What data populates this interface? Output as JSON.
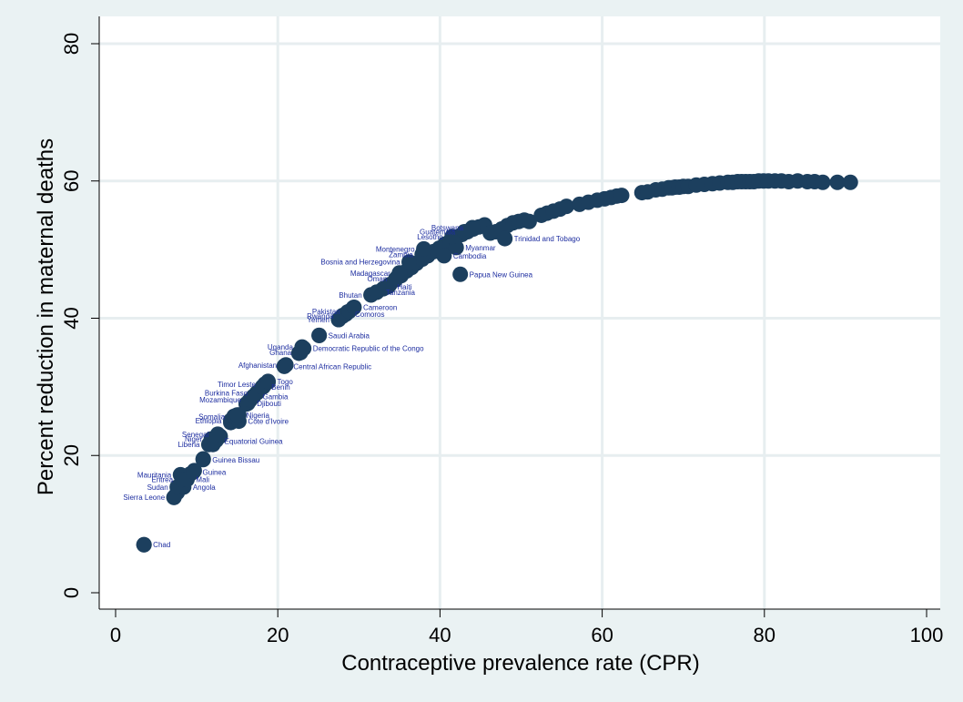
{
  "chart_data": {
    "type": "scatter",
    "title": "",
    "xlabel": "Contraceptive prevalence rate (CPR)",
    "ylabel": "Percent reduction in maternal deaths",
    "xlim": [
      0,
      100
    ],
    "ylim": [
      0,
      80
    ],
    "xticks": [
      0,
      20,
      40,
      60,
      80,
      100
    ],
    "yticks": [
      0,
      20,
      40,
      60,
      80
    ],
    "grid": true,
    "legend": "none",
    "colors": {
      "marker": "#1c3f5e",
      "label": "#1e2ea0",
      "background": "#eaf2f3",
      "plot_bg": "#ffffff",
      "grid": "#e7eef0"
    },
    "labeled_points": [
      {
        "label": "Chad",
        "x": 3.5,
        "y": 7
      },
      {
        "label": "Sierra Leone",
        "x": 7.2,
        "y": 13.9
      },
      {
        "label": "Sudan",
        "x": 7.6,
        "y": 15.4
      },
      {
        "label": "Angola",
        "x": 8.4,
        "y": 15.4
      },
      {
        "label": "Mauritania",
        "x": 8.0,
        "y": 17.2
      },
      {
        "label": "Eritrea",
        "x": 8.2,
        "y": 16.5
      },
      {
        "label": "Mali",
        "x": 8.8,
        "y": 16.5
      },
      {
        "label": "Guinea",
        "x": 9.6,
        "y": 17.6
      },
      {
        "label": "Guinea Bissau",
        "x": 10.8,
        "y": 19.4
      },
      {
        "label": "Liberia",
        "x": 11.5,
        "y": 21.6
      },
      {
        "label": "Niger",
        "x": 11.8,
        "y": 22.4
      },
      {
        "label": "Equatorial Guinea",
        "x": 12.3,
        "y": 22.1
      },
      {
        "label": "Senegal",
        "x": 12.6,
        "y": 23.1
      },
      {
        "label": "Ethiopia",
        "x": 14.2,
        "y": 25.1
      },
      {
        "label": "Somalia",
        "x": 14.6,
        "y": 25.7
      },
      {
        "label": "Cote d'Ivoire",
        "x": 15.2,
        "y": 25.0
      },
      {
        "label": "Nigeria",
        "x": 15.0,
        "y": 25.9
      },
      {
        "label": "Djibouti",
        "x": 16.3,
        "y": 27.6
      },
      {
        "label": "Mozambique",
        "x": 16.6,
        "y": 28.1
      },
      {
        "label": "Gambia",
        "x": 17.0,
        "y": 28.6
      },
      {
        "label": "Burkina Faso",
        "x": 17.4,
        "y": 29.1
      },
      {
        "label": "Benin",
        "x": 18.1,
        "y": 30.0
      },
      {
        "label": "Timor Leste",
        "x": 18.4,
        "y": 30.4
      },
      {
        "label": "Togo",
        "x": 18.8,
        "y": 30.8
      },
      {
        "label": "Central African Republic",
        "x": 20.8,
        "y": 33.0
      },
      {
        "label": "Afghanistan",
        "x": 21.0,
        "y": 33.2
      },
      {
        "label": "Ghana",
        "x": 22.8,
        "y": 35.0
      },
      {
        "label": "Democratic Republic of the Congo",
        "x": 23.2,
        "y": 35.6
      },
      {
        "label": "Uganda",
        "x": 23.0,
        "y": 35.8
      },
      {
        "label": "Saudi Arabia",
        "x": 25.1,
        "y": 37.5
      },
      {
        "label": "Yemen",
        "x": 27.5,
        "y": 39.8
      },
      {
        "label": "Rwanda",
        "x": 28.0,
        "y": 40.3
      },
      {
        "label": "Comoros",
        "x": 28.4,
        "y": 40.6
      },
      {
        "label": "Pakistan",
        "x": 28.8,
        "y": 41.0
      },
      {
        "label": "Cameroon",
        "x": 29.4,
        "y": 41.6
      },
      {
        "label": "Bhutan",
        "x": 31.5,
        "y": 43.4
      },
      {
        "label": "Tanzania",
        "x": 32.2,
        "y": 43.8
      },
      {
        "label": "Haiti",
        "x": 33.6,
        "y": 44.6
      },
      {
        "label": "Oman",
        "x": 34.6,
        "y": 45.8
      },
      {
        "label": "Madagascar",
        "x": 35.0,
        "y": 46.6
      },
      {
        "label": "Papua New Guinea",
        "x": 42.5,
        "y": 46.4
      },
      {
        "label": "Bosnia and Herzegovina",
        "x": 36.2,
        "y": 48.2
      },
      {
        "label": "Zambia",
        "x": 37.8,
        "y": 49.3
      },
      {
        "label": "Cambodia",
        "x": 40.5,
        "y": 49.1
      },
      {
        "label": "Montenegro",
        "x": 38.0,
        "y": 50.1
      },
      {
        "label": "Myanmar",
        "x": 42.0,
        "y": 50.3
      },
      {
        "label": "Lesotho",
        "x": 41.5,
        "y": 51.9
      },
      {
        "label": "Guatemala",
        "x": 43.0,
        "y": 52.6
      },
      {
        "label": "Botswana",
        "x": 44.0,
        "y": 53.2
      },
      {
        "label": "Trinidad and Tobago",
        "x": 48.0,
        "y": 51.6
      }
    ],
    "points": [
      [
        3.5,
        7
      ],
      [
        7.2,
        13.9
      ],
      [
        7.6,
        14.6
      ],
      [
        7.9,
        15.3
      ],
      [
        8.3,
        15.9
      ],
      [
        8.7,
        16.6
      ],
      [
        9.2,
        17.3
      ],
      [
        9.7,
        17.8
      ],
      [
        10.8,
        19.5
      ],
      [
        12.0,
        21.6
      ],
      [
        12.4,
        22.2
      ],
      [
        12.9,
        22.8
      ],
      [
        14.2,
        24.8
      ],
      [
        14.7,
        25.5
      ],
      [
        15.2,
        25.9
      ],
      [
        16.1,
        27.5
      ],
      [
        16.5,
        28.0
      ],
      [
        17.0,
        28.6
      ],
      [
        17.5,
        29.2
      ],
      [
        18.2,
        30.0
      ],
      [
        18.8,
        30.7
      ],
      [
        20.8,
        33.0
      ],
      [
        22.6,
        34.9
      ],
      [
        23.0,
        35.6
      ],
      [
        25.1,
        37.5
      ],
      [
        27.5,
        39.8
      ],
      [
        28.0,
        40.4
      ],
      [
        28.6,
        40.9
      ],
      [
        29.3,
        41.5
      ],
      [
        31.5,
        43.4
      ],
      [
        32.2,
        43.8
      ],
      [
        33.0,
        44.3
      ],
      [
        33.8,
        44.9
      ],
      [
        34.5,
        45.6
      ],
      [
        35.2,
        46.2
      ],
      [
        35.9,
        46.9
      ],
      [
        36.5,
        47.4
      ],
      [
        37.1,
        48.0
      ],
      [
        37.8,
        48.6
      ],
      [
        38.5,
        49.1
      ],
      [
        39.2,
        49.7
      ],
      [
        39.9,
        50.2
      ],
      [
        40.6,
        50.8
      ],
      [
        41.3,
        51.3
      ],
      [
        42.0,
        51.8
      ],
      [
        42.7,
        52.2
      ],
      [
        43.4,
        52.6
      ],
      [
        44.1,
        53.0
      ],
      [
        44.8,
        53.3
      ],
      [
        45.5,
        53.6
      ],
      [
        46.2,
        52.4
      ],
      [
        46.9,
        52.6
      ],
      [
        47.6,
        53.0
      ],
      [
        48.3,
        53.5
      ],
      [
        49.0,
        53.9
      ],
      [
        49.7,
        54.1
      ],
      [
        50.4,
        54.3
      ],
      [
        51.0,
        54.1
      ],
      [
        52.5,
        55.0
      ],
      [
        53.2,
        55.3
      ],
      [
        54.0,
        55.6
      ],
      [
        54.8,
        55.9
      ],
      [
        55.6,
        56.3
      ],
      [
        57.2,
        56.6
      ],
      [
        58.3,
        56.9
      ],
      [
        59.4,
        57.2
      ],
      [
        60.3,
        57.4
      ],
      [
        61.1,
        57.6
      ],
      [
        61.8,
        57.8
      ],
      [
        62.4,
        57.9
      ],
      [
        64.9,
        58.3
      ],
      [
        65.6,
        58.4
      ],
      [
        66.6,
        58.7
      ],
      [
        67.4,
        58.8
      ],
      [
        68.2,
        59.0
      ],
      [
        68.6,
        59.0
      ],
      [
        69.0,
        59.1
      ],
      [
        69.5,
        59.1
      ],
      [
        70.0,
        59.2
      ],
      [
        70.6,
        59.2
      ],
      [
        71.6,
        59.4
      ],
      [
        72.6,
        59.5
      ],
      [
        73.6,
        59.6
      ],
      [
        74.5,
        59.7
      ],
      [
        75.5,
        59.8
      ],
      [
        76.1,
        59.8
      ],
      [
        76.7,
        59.9
      ],
      [
        77.2,
        59.9
      ],
      [
        77.7,
        59.9
      ],
      [
        78.2,
        59.9
      ],
      [
        78.7,
        59.9
      ],
      [
        79.3,
        60.0
      ],
      [
        79.9,
        60.0
      ],
      [
        80.5,
        60.0
      ],
      [
        81.3,
        60.0
      ],
      [
        82.1,
        60.0
      ],
      [
        83.0,
        59.9
      ],
      [
        84.1,
        60.0
      ],
      [
        85.3,
        59.9
      ],
      [
        86.2,
        59.9
      ],
      [
        87.2,
        59.8
      ],
      [
        89.0,
        59.8
      ],
      [
        90.6,
        59.8
      ]
    ]
  }
}
